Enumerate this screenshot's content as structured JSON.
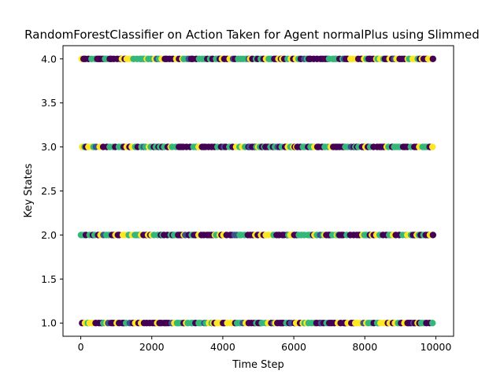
{
  "chart_data": {
    "type": "scatter",
    "title": "RandomForestClassifier on Action Taken for Agent normalPlus using Slimmed",
    "xlabel": "Time Step",
    "ylabel": "Key States",
    "xlim": [
      -500,
      10500
    ],
    "ylim": [
      0.85,
      4.15
    ],
    "xticks": [
      0,
      2000,
      4000,
      6000,
      8000,
      10000
    ],
    "yticks": [
      1.0,
      1.5,
      2.0,
      2.5,
      3.0,
      3.5,
      4.0
    ],
    "xtick_labels": [
      "0",
      "2000",
      "4000",
      "6000",
      "8000",
      "10000"
    ],
    "ytick_labels": [
      "1.0",
      "1.5",
      "2.0",
      "2.5",
      "3.0",
      "3.5",
      "4.0"
    ],
    "y_levels": [
      1,
      2,
      3,
      4
    ],
    "x_range": [
      0,
      9950
    ],
    "grid": false,
    "legend": "none",
    "colormap": "viridis",
    "class_colors": [
      "#440154",
      "#3b528b",
      "#35b779",
      "#fde725"
    ],
    "class_weights": [
      0.45,
      0.05,
      0.3,
      0.2
    ]
  }
}
